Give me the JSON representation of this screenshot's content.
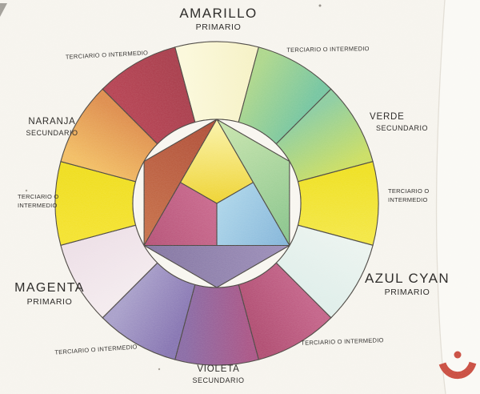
{
  "paper": {
    "background": "#f6f4ee",
    "edge_highlight": "#faf9f5",
    "scanline_color": "#ddd8cf"
  },
  "stroke_color": "#46423d",
  "labels": {
    "top": {
      "name": "AMARILLO",
      "type": "PRIMARIO"
    },
    "top_right_tertiary": "TERCIARIO O INTERMEDIO",
    "right_upper": {
      "name": "VERDE",
      "type": "SECUNDARIO"
    },
    "right_tertiary_line1": "TERCIARIO O",
    "right_tertiary_line2": "INTERMEDIO",
    "right_lower": {
      "name": "AZUL CYAN",
      "type": "PRIMARIO"
    },
    "bottom_right_tertiary": "TERCIARIO O INTERMEDIO",
    "bottom": {
      "name": "VIOLETA",
      "type": "SECUNDARIO"
    },
    "bottom_left_tertiary": "TERCIARIO O INTERMEDIO",
    "left_lower": {
      "name": "MAGENTA",
      "type": "PRIMARIO"
    },
    "left_tertiary_line1": "TERCIARIO O",
    "left_tertiary_line2": "INTERMEDIO",
    "left_upper": {
      "name": "NARANJA",
      "type": "SECUNDARIO"
    },
    "top_left_tertiary": "TERCIARIO O INTERMEDIO"
  },
  "wheel": {
    "ring_segments": [
      {
        "clock": 12,
        "role": "PRIMARIO",
        "label": "AMARILLO",
        "color": "#fbf8da",
        "color2": "#f6f2c6"
      },
      {
        "clock": 1,
        "role": "TERCIARIO O INTERMEDIO",
        "color": "#abd689",
        "color2": "#72c49e"
      },
      {
        "clock": 2,
        "role": "SECUNDARIO",
        "label": "VERDE",
        "color": "#8acc9e",
        "color2": "#c9dd5f"
      },
      {
        "clock": 3,
        "role": "TERCIARIO O INTERMEDIO",
        "color": "#efe01d",
        "color2": "#f3e63e"
      },
      {
        "clock": 4,
        "role": "PRIMARIO",
        "label": "AZUL CYAN",
        "color": "#eaf3ef",
        "color2": "#dfeeea"
      },
      {
        "clock": 5,
        "role": "TERCIARIO O INTERMEDIO",
        "color": "#c25f86",
        "color2": "#ae486e"
      },
      {
        "clock": 6,
        "role": "SECUNDARIO",
        "label": "VIOLETA",
        "color": "#a75184",
        "color2": "#8767a3"
      },
      {
        "clock": 7,
        "role": "TERCIARIO O INTERMEDIO",
        "color": "#8371b0",
        "color2": "#a69dc9"
      },
      {
        "clock": 8,
        "role": "PRIMARIO",
        "label": "MAGENTA",
        "color": "#f3eaee",
        "color2": "#eddfe7"
      },
      {
        "clock": 9,
        "role": "TERCIARIO O INTERMEDIO",
        "color": "#f4e229",
        "color2": "#efdd18"
      },
      {
        "clock": 10,
        "role": "SECUNDARIO",
        "label": "NARANJA",
        "color": "#f2bc60",
        "color2": "#dd8a48"
      },
      {
        "clock": 11,
        "role": "TERCIARIO O INTERMEDIO",
        "color": "#b33d4e",
        "color2": "#a63847"
      }
    ],
    "inner_shapes": {
      "primaries": [
        {
          "name": "amarillo-kite",
          "vertex_clock": 12,
          "color": "#faf3ab",
          "color2": "#eed22a"
        },
        {
          "name": "azul-cyan-kite",
          "vertex_clock": 4,
          "color": "#7fb2d8",
          "color2": "#abd5ea"
        },
        {
          "name": "magenta-kite",
          "vertex_clock": 8,
          "color": "#b34d73",
          "color2": "#c8658b"
        }
      ],
      "secondaries": [
        {
          "name": "verde-triangle",
          "vertex_clock": 2,
          "color": "#c8e5ac",
          "color2": "#82c187"
        },
        {
          "name": "violeta-triangle",
          "vertex_clock": 6,
          "color": "#9a8cb8",
          "color2": "#80719f"
        },
        {
          "name": "naranja-triangle",
          "vertex_clock": 10,
          "color": "#c76f45",
          "color2": "#ad4832"
        }
      ]
    },
    "inner_circle_fill": "#f8f6f0"
  },
  "watermark": {
    "glyph": "arabic-noon",
    "color": "#c8473a"
  }
}
